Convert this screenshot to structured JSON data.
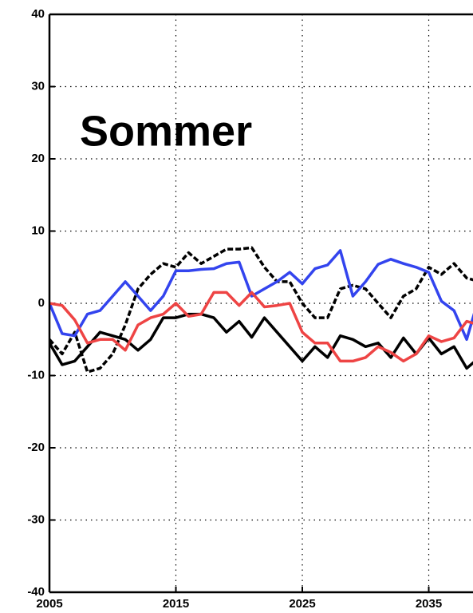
{
  "chart_data": {
    "type": "line",
    "title": "Sommer",
    "x": [
      2005,
      2006,
      2007,
      2008,
      2009,
      2010,
      2011,
      2012,
      2013,
      2014,
      2015,
      2016,
      2017,
      2018,
      2019,
      2020,
      2021,
      2022,
      2023,
      2024,
      2025,
      2026,
      2027,
      2028,
      2029,
      2030,
      2031,
      2032,
      2033,
      2034,
      2035,
      2036,
      2037,
      2038,
      2039
    ],
    "series": [
      {
        "color": "#000000",
        "dash": true,
        "values": [
          -5,
          -7,
          -4,
          -9.5,
          -9,
          -7,
          -3,
          2,
          4,
          5.5,
          5,
          7,
          5.5,
          6.5,
          7.5,
          7.5,
          7.7,
          5,
          3,
          3,
          0,
          -2,
          -2,
          2,
          2.5,
          2,
          0,
          -2,
          1,
          2,
          5,
          4,
          5.5,
          3.5,
          3
        ]
      },
      {
        "color": "#000000",
        "dash": false,
        "values": [
          -5.5,
          -8.5,
          -8,
          -6,
          -4,
          -4.5,
          -5,
          -6.5,
          -5,
          -2,
          -2,
          -1.5,
          -1.5,
          -2,
          -4,
          -2.5,
          -4.7,
          -2,
          -4,
          -6,
          -8,
          -6,
          -7.5,
          -4.5,
          -5,
          -6,
          -5.5,
          -7.5,
          -4.8,
          -7,
          -4.8,
          -7,
          -6,
          -9,
          -7.5
        ]
      },
      {
        "color": "#3344ee",
        "dash": false,
        "values": [
          0,
          -4.2,
          -4.5,
          -1.5,
          -1,
          1,
          3,
          1,
          -1,
          1,
          4.5,
          4.5,
          4.7,
          4.8,
          5.5,
          5.7,
          1,
          2,
          3,
          4.3,
          2.7,
          4.8,
          5.3,
          7.3,
          1,
          3,
          5.4,
          6.1,
          5.5,
          5,
          4.3,
          0.3,
          -1,
          -5,
          1
        ]
      },
      {
        "color": "#ee4444",
        "dash": false,
        "values": [
          0,
          -0.3,
          -2.3,
          -5.5,
          -5,
          -5,
          -6.5,
          -3,
          -2,
          -1.5,
          0,
          -1.8,
          -1.5,
          1.5,
          1.5,
          -0.3,
          1.5,
          -0.5,
          -0.3,
          0,
          -4,
          -5.5,
          -5.5,
          -8,
          -8,
          -7.5,
          -6,
          -6.8,
          -8,
          -7,
          -4.5,
          -5.3,
          -4.8,
          -2.5,
          -3
        ]
      }
    ],
    "xlim": [
      2005,
      2038.5
    ],
    "xticks": [
      2005,
      2015,
      2025,
      2035
    ],
    "ylim": [
      -40,
      40
    ],
    "yticks": [
      -40,
      -30,
      -20,
      -10,
      0,
      10,
      20,
      30,
      40
    ],
    "grid": true
  }
}
